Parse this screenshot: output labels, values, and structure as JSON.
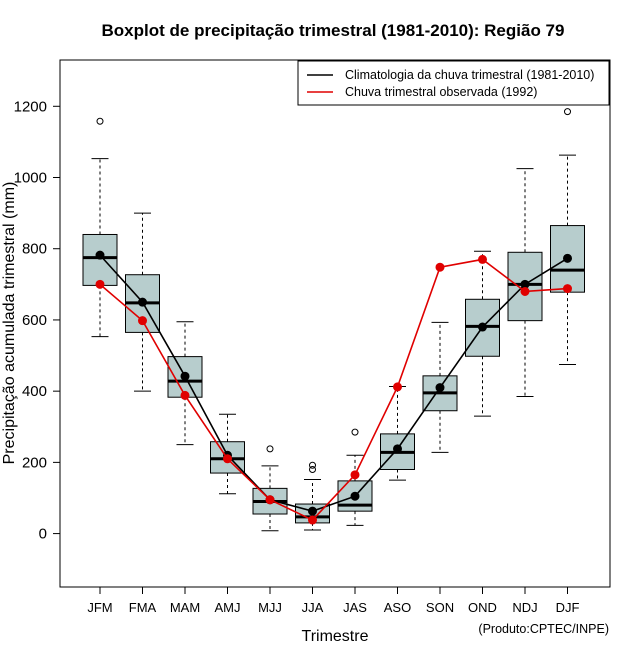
{
  "chart_data": {
    "type": "boxplot",
    "title": "Boxplot de precipitação trimestral (1981-2010): Região 79",
    "xlabel": "Trimestre",
    "ylabel": "Precipitação acumulada trimestral (mm)",
    "credit": "(Produto:CPTEC/INPE)",
    "ylim": [
      -150,
      1330
    ],
    "yticks": [
      0,
      200,
      400,
      600,
      800,
      1000,
      1200
    ],
    "categories": [
      "JFM",
      "FMA",
      "MAM",
      "AMJ",
      "MJJ",
      "JJA",
      "JAS",
      "ASO",
      "SON",
      "OND",
      "NDJ",
      "DJF"
    ],
    "boxes": [
      {
        "min": 553,
        "q1": 697,
        "median": 775,
        "q3": 840,
        "max": 1053,
        "outliers": [
          1158
        ]
      },
      {
        "min": 400,
        "q1": 565,
        "median": 648,
        "q3": 727,
        "max": 900,
        "outliers": []
      },
      {
        "min": 250,
        "q1": 383,
        "median": 428,
        "q3": 497,
        "max": 595,
        "outliers": []
      },
      {
        "min": 112,
        "q1": 170,
        "median": 210,
        "q3": 258,
        "max": 335,
        "outliers": []
      },
      {
        "min": 8,
        "q1": 55,
        "median": 90,
        "q3": 127,
        "max": 190,
        "outliers": [
          238
        ]
      },
      {
        "min": 10,
        "q1": 30,
        "median": 47,
        "q3": 83,
        "max": 152,
        "outliers": [
          180,
          192
        ]
      },
      {
        "min": 23,
        "q1": 63,
        "median": 80,
        "q3": 148,
        "max": 220,
        "outliers": [
          285
        ]
      },
      {
        "min": 150,
        "q1": 180,
        "median": 228,
        "q3": 280,
        "max": 413,
        "outliers": []
      },
      {
        "min": 228,
        "q1": 345,
        "median": 395,
        "q3": 443,
        "max": 593,
        "outliers": []
      },
      {
        "min": 330,
        "q1": 498,
        "median": 582,
        "q3": 658,
        "max": 793,
        "outliers": []
      },
      {
        "min": 385,
        "q1": 598,
        "median": 700,
        "q3": 790,
        "max": 1025,
        "outliers": []
      },
      {
        "min": 475,
        "q1": 678,
        "median": 740,
        "q3": 865,
        "max": 1063,
        "outliers": [
          1185
        ]
      }
    ],
    "series": [
      {
        "name": "Climatologia da chuva trimestral (1981-2010)",
        "color": "#000000",
        "values": [
          782,
          650,
          442,
          220,
          95,
          63,
          105,
          238,
          410,
          580,
          700,
          773
        ]
      },
      {
        "name": "Chuva trimestral observada (1992)",
        "color": "#e00000",
        "values": [
          700,
          598,
          388,
          210,
          95,
          38,
          165,
          412,
          748,
          770,
          680,
          688
        ]
      }
    ],
    "legend_position": "top-right",
    "box_fill": "#b7cdcd"
  }
}
